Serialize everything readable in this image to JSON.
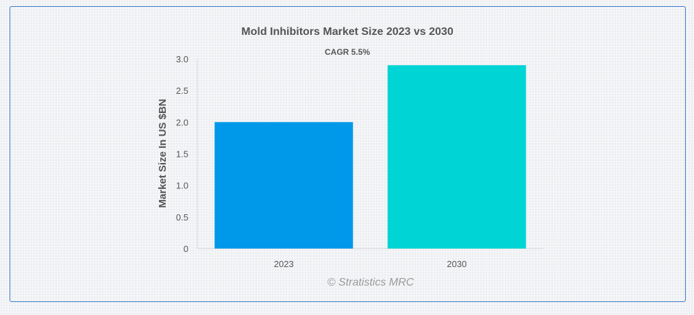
{
  "chart_data": {
    "type": "bar",
    "title": "Mold Inhibitors Market Size 2023 vs 2030",
    "subtitle": "CAGR 5.5%",
    "categories": [
      "2023",
      "2030"
    ],
    "values": [
      2.0,
      2.9
    ],
    "colors": [
      "#0099ea",
      "#00d4d4"
    ],
    "xlabel": "",
    "ylabel": "Market Size In US $BN",
    "ylim": [
      0,
      3.0
    ],
    "yticks": [
      "0",
      "0.5",
      "1.0",
      "1.5",
      "2.0",
      "2.5",
      "3.0"
    ],
    "grid": false,
    "legend": "none"
  },
  "watermark": "© Stratistics MRC"
}
